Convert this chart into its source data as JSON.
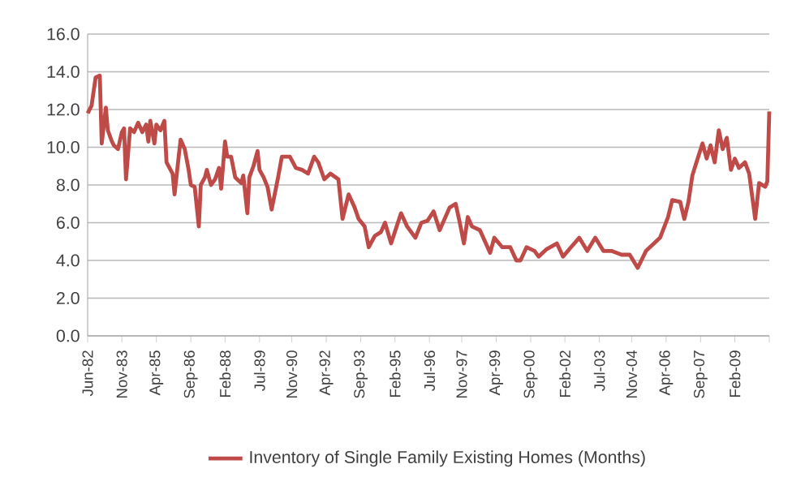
{
  "chart_data": {
    "type": "line",
    "x": [
      "1982-06",
      "1982-08",
      "1982-10",
      "1982-12",
      "1983-01",
      "1983-03",
      "1983-04",
      "1983-06",
      "1983-07",
      "1983-09",
      "1983-11",
      "1983-12",
      "1984-01",
      "1984-03",
      "1984-05",
      "1984-07",
      "1984-09",
      "1984-11",
      "1984-12",
      "1985-01",
      "1985-03",
      "1985-04",
      "1985-06",
      "1985-08",
      "1985-09",
      "1985-12",
      "1986-01",
      "1986-03",
      "1986-04",
      "1986-06",
      "1986-08",
      "1986-09",
      "1986-11",
      "1987-01",
      "1987-02",
      "1987-04",
      "1987-05",
      "1987-07",
      "1987-09",
      "1987-11",
      "1987-12",
      "1988-02",
      "1988-03",
      "1988-05",
      "1988-07",
      "1988-10",
      "1988-11",
      "1989-01",
      "1989-02",
      "1989-04",
      "1989-06",
      "1989-07",
      "1989-09",
      "1989-11",
      "1990-01",
      "1990-04",
      "1990-06",
      "1990-10",
      "1991-01",
      "1991-04",
      "1991-07",
      "1991-10",
      "1991-12",
      "1992-03",
      "1992-06",
      "1992-10",
      "1992-12",
      "1993-03",
      "1993-06",
      "1993-08",
      "1993-11",
      "1994-01",
      "1994-04",
      "1994-07",
      "1994-09",
      "1994-12",
      "1995-05",
      "1995-08",
      "1995-12",
      "1996-03",
      "1996-06",
      "1996-09",
      "1996-12",
      "1997-05",
      "1997-08",
      "1997-10",
      "1997-12",
      "1998-02",
      "1998-04",
      "1998-08",
      "1999-01",
      "1999-03",
      "1999-07",
      "1999-11",
      "2000-02",
      "2000-04",
      "2000-07",
      "2000-11",
      "2001-01",
      "2001-05",
      "2001-10",
      "2002-01",
      "2002-05",
      "2002-09",
      "2003-01",
      "2003-05",
      "2003-09",
      "2004-01",
      "2004-06",
      "2004-10",
      "2005-02",
      "2005-06",
      "2005-10",
      "2006-01",
      "2006-05",
      "2006-07",
      "2006-11",
      "2007-01",
      "2007-03",
      "2007-05",
      "2007-07",
      "2007-10",
      "2007-12",
      "2008-02",
      "2008-04",
      "2008-06",
      "2008-08",
      "2008-10",
      "2008-12",
      "2009-02",
      "2009-04",
      "2009-07",
      "2009-09",
      "2009-12",
      "2010-02",
      "2010-05",
      "2010-06",
      "2010-07"
    ],
    "series": [
      {
        "name": "Inventory of Single Family Existing Homes (Months)",
        "color": "#be4b48",
        "values": [
          11.8,
          12.2,
          13.7,
          13.8,
          10.2,
          12.1,
          10.9,
          10.3,
          10.1,
          9.9,
          10.8,
          11.0,
          8.3,
          11.0,
          10.8,
          11.3,
          10.8,
          11.2,
          10.3,
          11.4,
          10.2,
          11.2,
          10.9,
          11.4,
          9.2,
          8.6,
          7.5,
          9.5,
          10.4,
          9.9,
          8.8,
          8.0,
          7.9,
          5.8,
          8.0,
          8.4,
          8.8,
          8.0,
          8.3,
          8.9,
          7.8,
          10.3,
          9.5,
          9.5,
          8.4,
          8.1,
          8.5,
          6.5,
          8.4,
          9.0,
          9.8,
          8.8,
          8.4,
          7.9,
          6.7,
          8.3,
          9.5,
          9.5,
          8.9,
          8.8,
          8.6,
          9.5,
          9.2,
          8.3,
          8.6,
          8.3,
          6.2,
          7.5,
          6.8,
          6.2,
          5.8,
          4.7,
          5.3,
          5.5,
          6.0,
          4.9,
          6.5,
          5.8,
          5.2,
          6.0,
          6.1,
          6.6,
          5.6,
          6.8,
          7.0,
          6.0,
          4.9,
          6.3,
          5.8,
          5.6,
          4.4,
          5.2,
          4.7,
          4.7,
          4.0,
          4.0,
          4.7,
          4.5,
          4.2,
          4.6,
          4.9,
          4.2,
          4.7,
          5.2,
          4.5,
          5.2,
          4.5,
          4.5,
          4.3,
          4.3,
          3.6,
          4.5,
          4.9,
          5.2,
          6.3,
          7.2,
          7.1,
          6.2,
          7.1,
          8.5,
          9.2,
          10.2,
          9.4,
          10.1,
          9.2,
          10.9,
          9.9,
          10.5,
          8.8,
          9.4,
          8.9,
          9.2,
          8.6,
          6.2,
          8.1,
          7.9,
          8.2,
          11.9
        ]
      }
    ],
    "xlim": [
      "1982-06",
      "2010-07"
    ],
    "xticks": [
      {
        "value": "1982-06",
        "label": "Jun-82"
      },
      {
        "value": "1983-11",
        "label": "Nov-83"
      },
      {
        "value": "1985-04",
        "label": "Apr-85"
      },
      {
        "value": "1986-09",
        "label": "Sep-86"
      },
      {
        "value": "1988-02",
        "label": "Feb-88"
      },
      {
        "value": "1989-07",
        "label": "Jul-89"
      },
      {
        "value": "1990-11",
        "label": "Nov-90"
      },
      {
        "value": "1992-04",
        "label": "Apr-92"
      },
      {
        "value": "1993-09",
        "label": "Sep-93"
      },
      {
        "value": "1995-02",
        "label": "Feb-95"
      },
      {
        "value": "1996-07",
        "label": "Jul-96"
      },
      {
        "value": "1997-11",
        "label": "Nov-97"
      },
      {
        "value": "1999-04",
        "label": "Apr-99"
      },
      {
        "value": "2000-09",
        "label": "Sep-00"
      },
      {
        "value": "2002-02",
        "label": "Feb-02"
      },
      {
        "value": "2003-07",
        "label": "Jul-03"
      },
      {
        "value": "2004-11",
        "label": "Nov-04"
      },
      {
        "value": "2006-04",
        "label": "Apr-06"
      },
      {
        "value": "2007-09",
        "label": "Sep-07"
      },
      {
        "value": "2009-02",
        "label": "Feb-09"
      },
      {
        "value": "2010-07",
        "label": null
      }
    ],
    "ylim": [
      0,
      16
    ],
    "yticks": [
      {
        "value": 0,
        "label": "0.0"
      },
      {
        "value": 2,
        "label": "2.0"
      },
      {
        "value": 4,
        "label": "4.0"
      },
      {
        "value": 6,
        "label": "6.0"
      },
      {
        "value": 8,
        "label": "8.0"
      },
      {
        "value": 10,
        "label": "10.0"
      },
      {
        "value": 12,
        "label": "12.0"
      },
      {
        "value": 14,
        "label": "14.0"
      },
      {
        "value": 16,
        "label": "16.0"
      }
    ],
    "grid": "y",
    "legend": "bottom",
    "marker": "none",
    "line_style": "solid"
  }
}
